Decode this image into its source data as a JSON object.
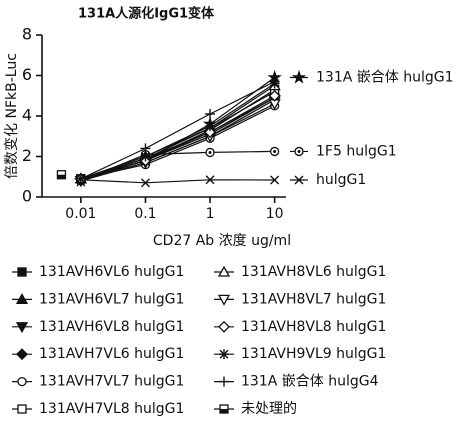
{
  "chart_data": {
    "type": "line",
    "title": "131A人源化IgG1变体",
    "x_label": "CD27 Ab  浓度 ug/ml",
    "y_label": "倍数变化 NFkB-Luc",
    "x": [
      0.01,
      0.1,
      1,
      10
    ],
    "xlim": [
      0.0025,
      15
    ],
    "xticks": [
      0.01,
      0.1,
      1,
      10
    ],
    "xscale": "log",
    "ylim": [
      0,
      8
    ],
    "yticks": [
      0,
      2,
      4,
      6,
      8
    ],
    "grid": false,
    "legend_position": "bottom",
    "series": [
      {
        "name": "131A  嵌合体  hulgG1",
        "color": "#111111",
        "marker": "star",
        "filled": true,
        "inline_label": true,
        "values": [
          0.8,
          1.8,
          3.6,
          5.9
        ]
      },
      {
        "name": "1F5  hulgG1",
        "color": "#111111",
        "marker": "circle-dot",
        "filled": false,
        "inline_label": true,
        "values": [
          0.8,
          2.1,
          2.2,
          2.25
        ]
      },
      {
        "name": "hulgG1",
        "color": "#111111",
        "marker": "x",
        "filled": false,
        "inline_label": true,
        "values": [
          0.85,
          0.7,
          0.85,
          0.84
        ]
      },
      {
        "name": "131AVH6VL6  hulgG1",
        "color": "#111111",
        "marker": "square",
        "filled": true,
        "values": [
          0.9,
          1.9,
          3.2,
          4.9
        ]
      },
      {
        "name": "131AVH6VL7  hulgG1",
        "color": "#111111",
        "marker": "triangle-up",
        "filled": true,
        "values": [
          0.9,
          2.0,
          3.4,
          5.2
        ]
      },
      {
        "name": "131AVH6VL8  hulgG1",
        "color": "#111111",
        "marker": "triangle-down",
        "filled": true,
        "values": [
          0.8,
          1.7,
          3.0,
          4.8
        ]
      },
      {
        "name": "131AVH7VL6  hulgG1",
        "color": "#111111",
        "marker": "diamond",
        "filled": true,
        "values": [
          0.9,
          1.8,
          3.1,
          4.9
        ]
      },
      {
        "name": "131AVH7VL7  hulgG1",
        "color": "#111111",
        "marker": "circle",
        "filled": false,
        "values": [
          0.9,
          1.6,
          2.9,
          4.5
        ]
      },
      {
        "name": "131AVH7VL8  hulgG1",
        "color": "#111111",
        "marker": "square",
        "filled": false,
        "values": [
          0.9,
          1.8,
          3.3,
          5.3
        ]
      },
      {
        "name": "131AVH8VL6  hulgG1",
        "color": "#111111",
        "marker": "triangle-up",
        "filled": false,
        "values": [
          0.9,
          1.9,
          3.4,
          5.5
        ]
      },
      {
        "name": "131AVH8VL7  hulgG1",
        "color": "#111111",
        "marker": "triangle-down",
        "filled": false,
        "values": [
          0.8,
          1.7,
          3.0,
          4.6
        ]
      },
      {
        "name": "131AVH8VL8  hulgG1",
        "color": "#111111",
        "marker": "diamond",
        "filled": false,
        "values": [
          0.9,
          1.8,
          3.2,
          5.0
        ]
      },
      {
        "name": "131AVH9VL9  hulgG1",
        "color": "#111111",
        "marker": "asterisk",
        "filled": false,
        "values": [
          0.9,
          2.0,
          3.5,
          5.6
        ]
      },
      {
        "name": "131A  嵌合体  hulgG4",
        "color": "#111111",
        "marker": "plus",
        "filled": false,
        "values": [
          0.9,
          2.4,
          4.1,
          5.7
        ]
      },
      {
        "name": "未处理的",
        "color": "#111111",
        "marker": "square-half",
        "filled": true,
        "x": [
          0.005
        ],
        "values": [
          1.1
        ]
      }
    ]
  }
}
